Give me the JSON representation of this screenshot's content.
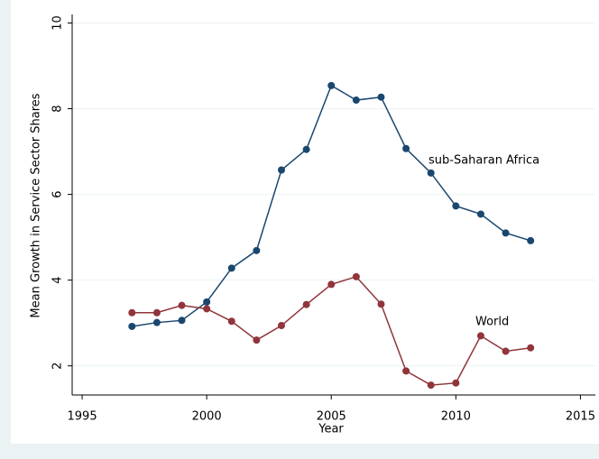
{
  "chart_data": {
    "type": "line",
    "x_label": "Year",
    "y_label": "Mean Growth in Service Sector Shares",
    "x": [
      1997,
      1998,
      1999,
      2000,
      2001,
      2002,
      2003,
      2004,
      2005,
      2006,
      2007,
      2008,
      2009,
      2010,
      2011,
      2012,
      2013
    ],
    "series": [
      {
        "name": "sub-Saharan Africa",
        "color": "#1a476f",
        "values": [
          2.92,
          3.01,
          3.06,
          3.49,
          4.28,
          4.69,
          6.57,
          7.05,
          8.54,
          8.2,
          8.27,
          7.07,
          6.5,
          5.73,
          5.54,
          5.1,
          4.92
        ]
      },
      {
        "name": "World",
        "color": "#90353b",
        "values": [
          3.24,
          3.24,
          3.41,
          3.33,
          3.04,
          2.6,
          2.94,
          3.43,
          3.9,
          4.08,
          3.44,
          1.88,
          1.55,
          1.6,
          2.7,
          2.34,
          2.42
        ]
      }
    ],
    "xlim": [
      1994.6,
      2015.6
    ],
    "xticks": [
      1995,
      2000,
      2005,
      2010,
      2015
    ],
    "ylim": [
      1.32,
      10.2
    ],
    "yticks": [
      2,
      4,
      6,
      8,
      10
    ],
    "grid": true
  }
}
